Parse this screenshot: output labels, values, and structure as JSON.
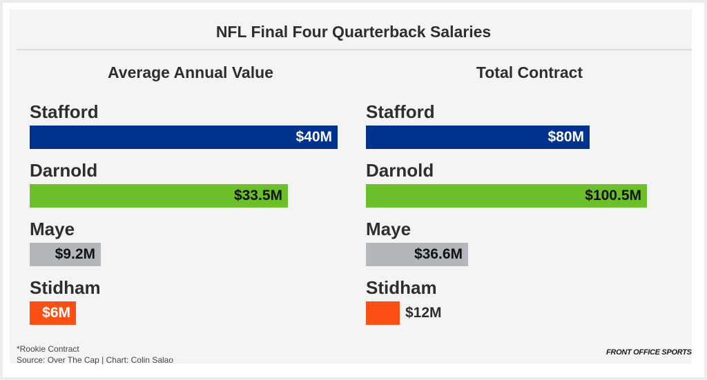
{
  "chart_data": [
    {
      "type": "bar",
      "orientation": "horizontal",
      "title": "Average Annual Value",
      "categories": [
        "Stafford",
        "Darnold",
        "Maye",
        "Stidham"
      ],
      "values": [
        40,
        33.5,
        9.2,
        6
      ],
      "value_labels": [
        "$40M",
        "$33.5M",
        "$9.2M",
        "$6M"
      ],
      "colors": [
        "#00338d",
        "#6abf2b",
        "#b3b6ba",
        "#fb4f14"
      ],
      "label_colors": [
        "#ffffff",
        "#111111",
        "#111111",
        "#ffffff"
      ],
      "unit": "$M",
      "grid": false
    },
    {
      "type": "bar",
      "orientation": "horizontal",
      "title": "Total Contract",
      "categories": [
        "Stafford",
        "Darnold",
        "Maye",
        "Stidham"
      ],
      "values": [
        80,
        100.5,
        36.6,
        12
      ],
      "value_labels": [
        "$80M",
        "$100.5M",
        "$36.6M",
        "$12M"
      ],
      "colors": [
        "#00338d",
        "#6abf2b",
        "#b3b6ba",
        "#fb4f14"
      ],
      "label_colors": [
        "#ffffff",
        "#111111",
        "#111111",
        "#2e2e2e"
      ],
      "label_outside": [
        false,
        false,
        false,
        true
      ],
      "unit": "$M",
      "grid": false
    }
  ],
  "header": {
    "title": "NFL Final Four Quarterback Salaries"
  },
  "footer": {
    "note": "*Rookie Contract",
    "source": "Source: Over The Cap | Chart: Colin Salao",
    "brand": "FRONT OFFICE SPORTS"
  }
}
